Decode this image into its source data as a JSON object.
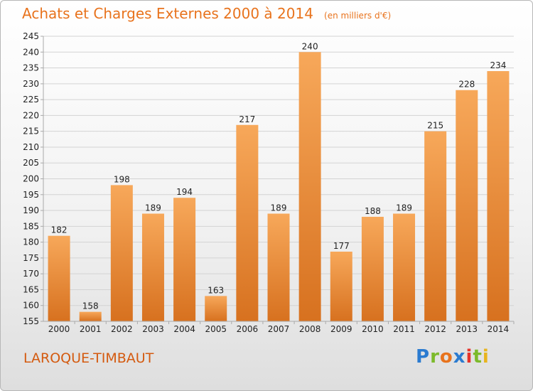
{
  "chart_data": {
    "type": "bar",
    "title": "Achats et Charges Externes 2000 à 2014",
    "unit_label": "(en milliers d'€)",
    "categories": [
      "2000",
      "2001",
      "2002",
      "2003",
      "2004",
      "2005",
      "2006",
      "2007",
      "2008",
      "2009",
      "2010",
      "2011",
      "2012",
      "2013",
      "2014"
    ],
    "values": [
      182,
      158,
      198,
      189,
      194,
      163,
      217,
      189,
      240,
      177,
      188,
      189,
      215,
      228,
      234
    ],
    "ylim": [
      155,
      245
    ],
    "yticks": [
      155,
      160,
      165,
      170,
      175,
      180,
      185,
      190,
      195,
      200,
      205,
      210,
      215,
      220,
      225,
      230,
      235,
      240,
      245
    ],
    "grid": true,
    "bar_color_top": "#f7a85a",
    "bar_color_bottom": "#d7711f",
    "title_color": "#e8731d"
  },
  "footer": {
    "place": "LAROQUE-TIMBAUT",
    "logo": "Proxiti",
    "logo_colors": [
      "#2b7bd0",
      "#7cba2b",
      "#e8731d",
      "#2b7bd0",
      "#e6332a",
      "#7cba2b",
      "#e8b41d"
    ]
  }
}
